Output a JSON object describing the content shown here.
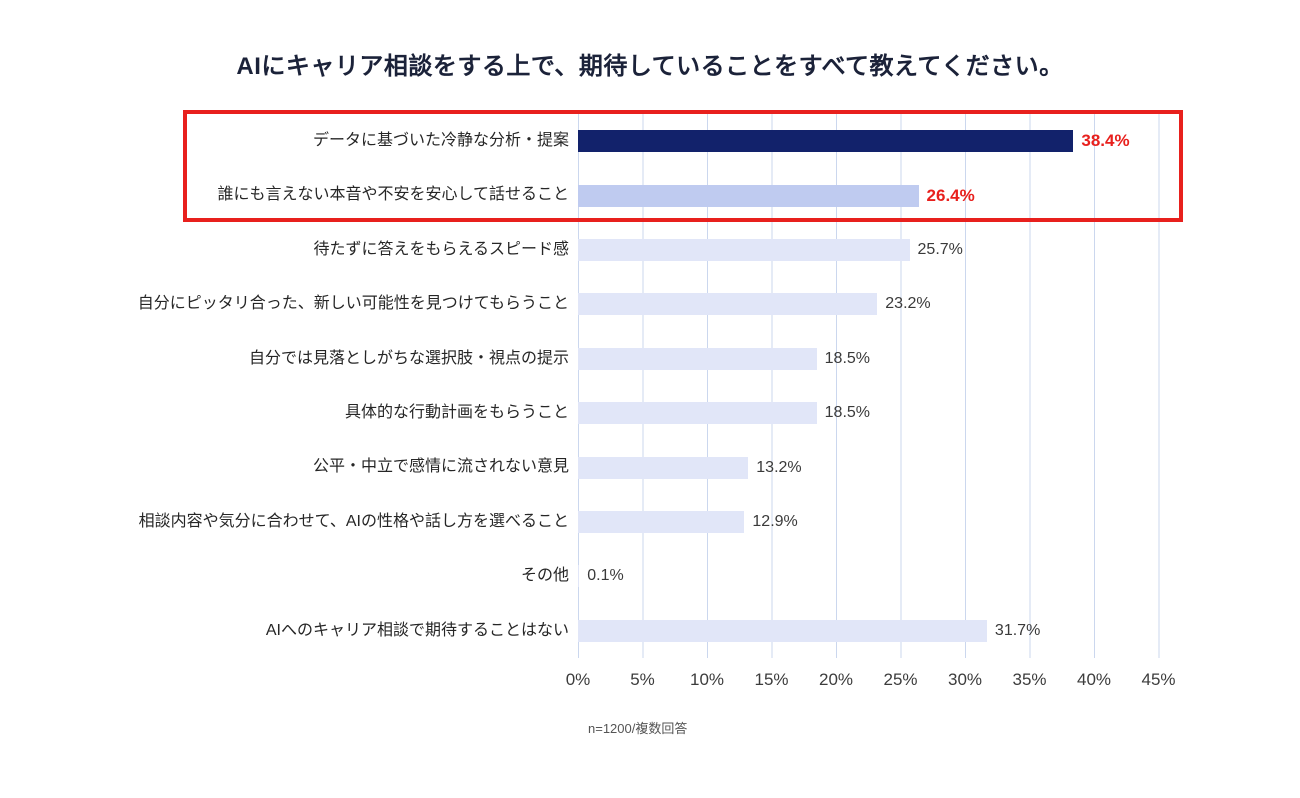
{
  "chart_data": {
    "type": "bar",
    "orientation": "horizontal",
    "title": "AIにキャリア相談をする上で、期待していることをすべて教えてください。",
    "categories": [
      "データに基づいた冷静な分析・提案",
      "誰にも言えない本音や不安を安心して話せること",
      "待たずに答えをもらえるスピード感",
      "自分にピッタリ合った、新しい可能性を見つけてもらうこと",
      "自分では見落としがちな選択肢・視点の提示",
      "具体的な行動計画をもらうこと",
      "公平・中立で感情に流されない意見",
      "相談内容や気分に合わせて、AIの性格や話し方を選べること",
      "その他",
      "AIへのキャリア相談で期待することはない"
    ],
    "values": [
      38.4,
      26.4,
      25.7,
      23.2,
      18.5,
      18.5,
      13.2,
      12.9,
      0.1,
      31.7
    ],
    "value_labels": [
      "38.4%",
      "26.4%",
      "25.7%",
      "23.2%",
      "18.5%",
      "18.5%",
      "13.2%",
      "12.9%",
      "0.1%",
      "31.7%"
    ],
    "x_ticks": [
      "0%",
      "5%",
      "10%",
      "15%",
      "20%",
      "25%",
      "30%",
      "35%",
      "40%",
      "45%"
    ],
    "xlim": [
      0,
      45
    ],
    "grid": "vertical",
    "legend": "none",
    "note": "n=1200/複数回答",
    "highlighted_indices": [
      0,
      1
    ],
    "colors": {
      "bar_primary": "#12226b",
      "bar_highlight_secondary": "#bfcbf0",
      "bar_default": "#e1e6f8",
      "highlight_border": "#e8201d",
      "value_highlight_text": "#e8201d",
      "value_text": "#3a3a3a",
      "gridline": "#cbd7ee",
      "title_text": "#1b2239"
    }
  }
}
